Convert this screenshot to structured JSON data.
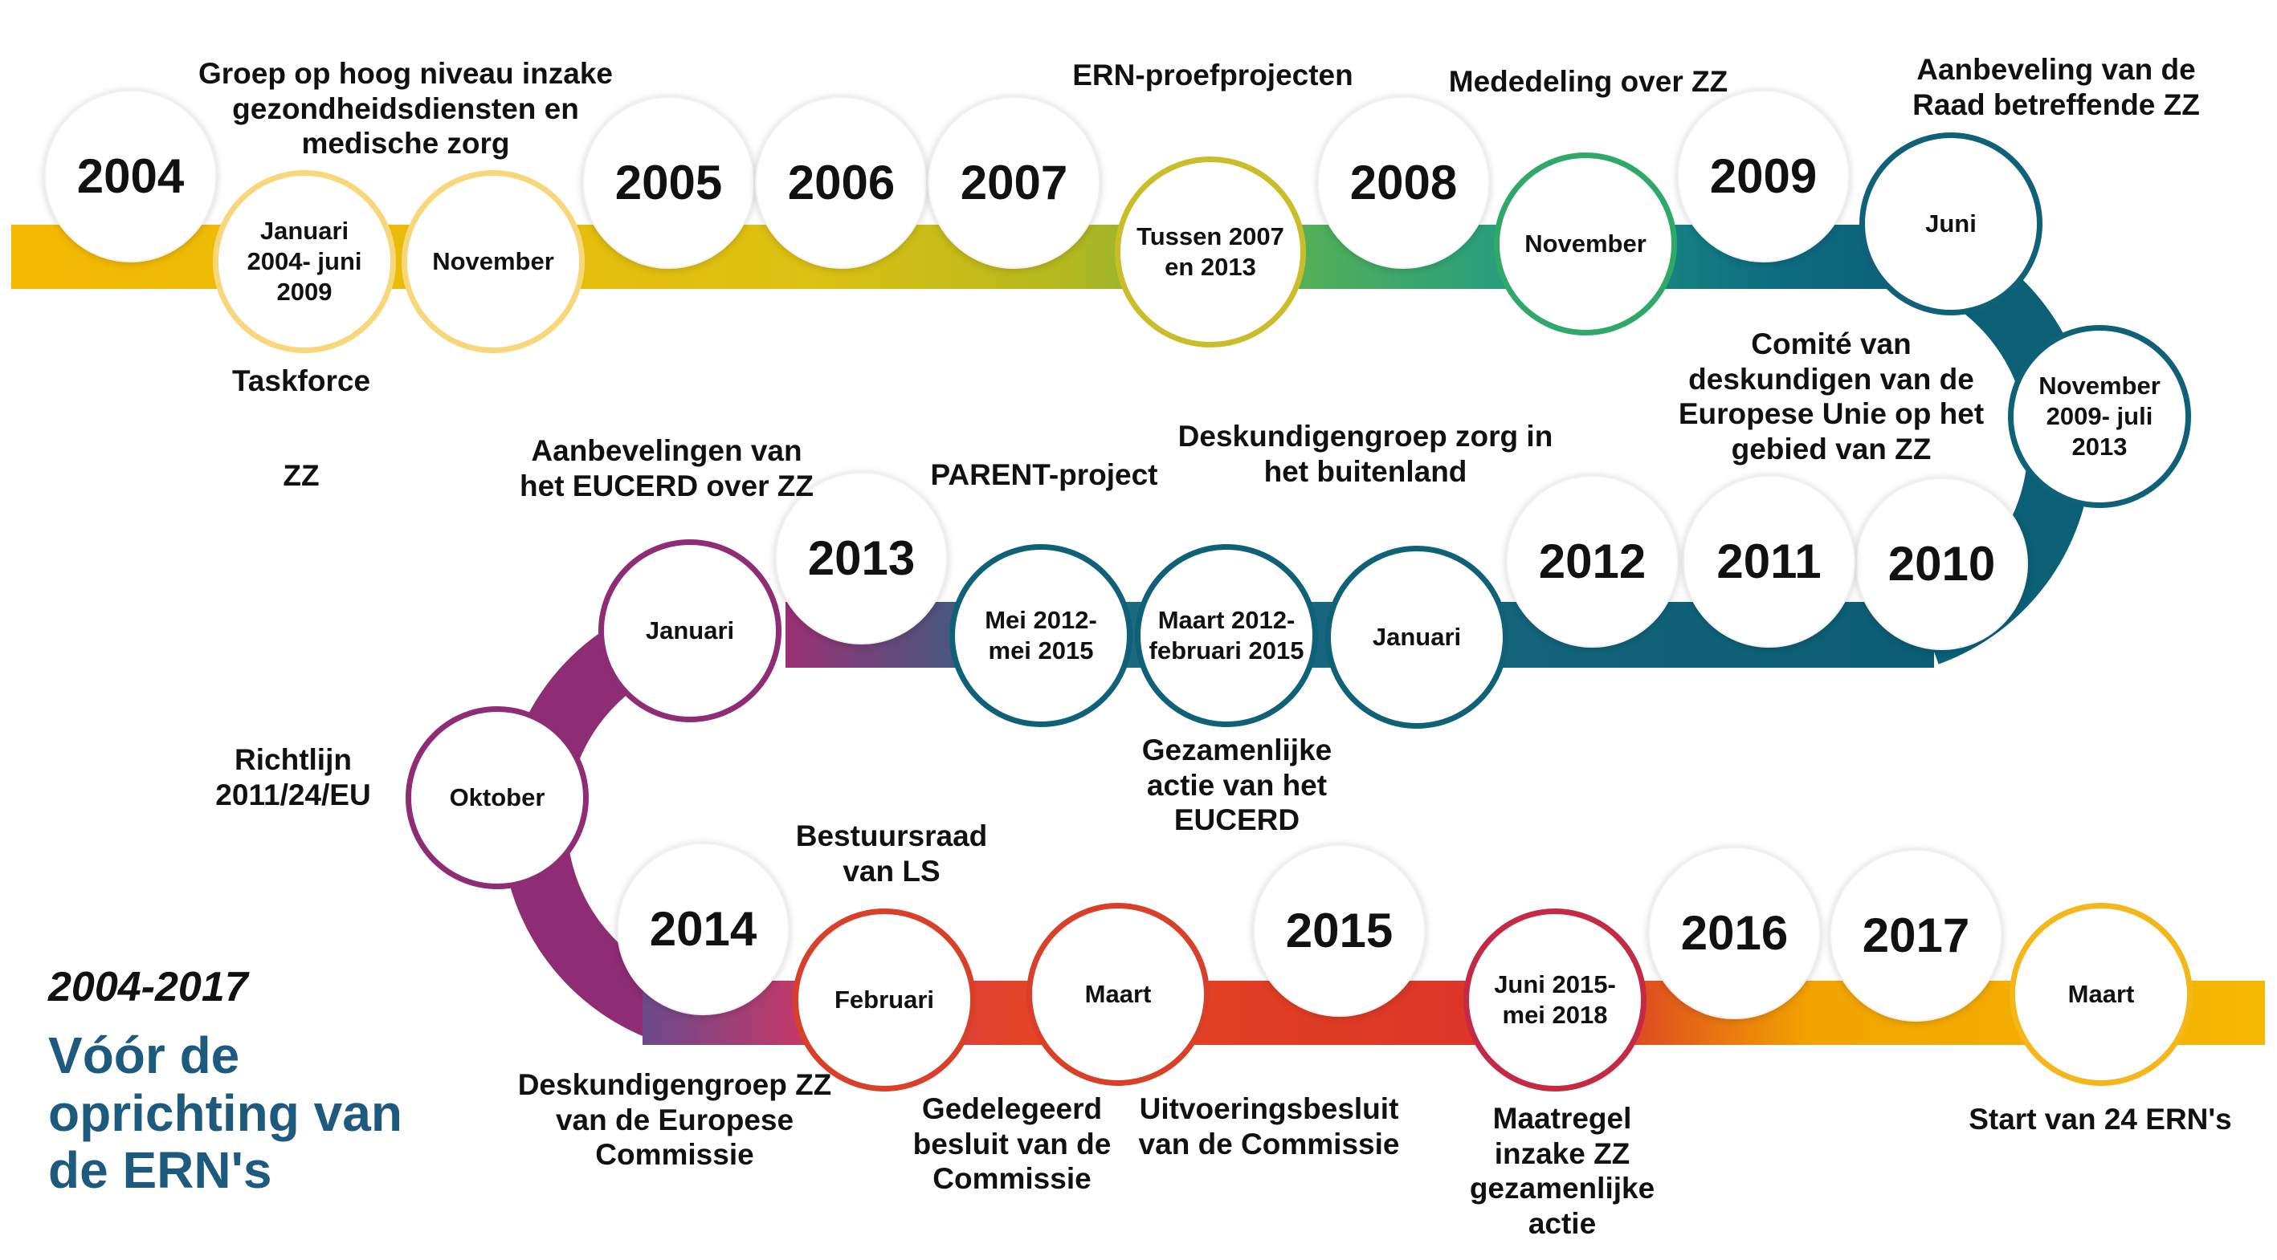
{
  "title": {
    "years": "2004-2017",
    "main": "Vóór de oprichting van de ERN's"
  },
  "years": [
    "2004",
    "2005",
    "2006",
    "2007",
    "2008",
    "2009",
    "2010",
    "2011",
    "2012",
    "2013",
    "2014",
    "2015",
    "2016",
    "2017"
  ],
  "events": [
    {
      "date": "Januari 2004- juni 2009",
      "label": "Taskforce\n\nZZ"
    },
    {
      "date": "November",
      "label": "Groep op hoog niveau inzake gezondheidsdiensten en medische zorg"
    },
    {
      "date": "Tussen 2007 en 2013",
      "label": "ERN-proefprojecten"
    },
    {
      "date": "November",
      "label": "Mededeling over ZZ"
    },
    {
      "date": "Juni",
      "label": "Aanbeveling van de Raad betreffende ZZ"
    },
    {
      "date": "November 2009- juli 2013",
      "label": "Comité van deskundigen van de Europese Unie op het gebied van ZZ"
    },
    {
      "date": "Januari",
      "label": "Deskundigengroep zorg in het buitenland"
    },
    {
      "date": "Maart 2012- februari 2015",
      "label": "Gezamenlijke actie van het EUCERD"
    },
    {
      "date": "Mei 2012- mei 2015",
      "label": "PARENT-project"
    },
    {
      "date": "Januari",
      "label": "Aanbevelingen van het EUCERD over ZZ"
    },
    {
      "date": "Oktober",
      "label": "Richtlijn 2011/24/EU"
    },
    {
      "date": "Februari",
      "label": "Bestuursraad van LS"
    },
    {
      "date": "Maart",
      "label": "Gedelegeerd besluit van de Commissie"
    },
    {
      "date": "Juni 2015- mei 2018",
      "label": "Maatregel inzake ZZ gezamenlijke actie"
    },
    {
      "date": "Maart",
      "label": "Start van 24 ERN's"
    }
  ],
  "extra_labels": {
    "expert_group_2014": "Deskundigengroep ZZ van de Europese Commissie",
    "implementing_decision": "Uitvoeringsbesluit van de Commissie"
  },
  "colors": {
    "road": [
      "#f5b800",
      "#e2be18",
      "#b8b81a",
      "#4fae5a",
      "#1f9a86",
      "#0e6b80",
      "#0b5d74",
      "#6d4a8a",
      "#9b2f74",
      "#c23a52",
      "#e5471e",
      "#d9312b",
      "#f5b800"
    ],
    "ring_yellow": "#f8d77a",
    "ring_green": "#2fa86a",
    "ring_teal": "#0e6177",
    "ring_purple": "#8e2d73",
    "ring_red": "#d9402a",
    "ring_crimson": "#c52a45",
    "ring_gold": "#f3b71a",
    "ring_olive": "#c9be2a",
    "title_blue": "#1d5a7e"
  }
}
